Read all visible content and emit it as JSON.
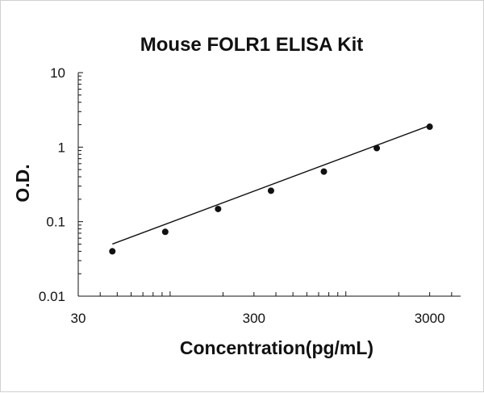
{
  "chart_data": {
    "type": "scatter",
    "title": "Mouse FOLR1 ELISA Kit",
    "xlabel": "Concentration(pg/mL)",
    "ylabel": "O.D.",
    "x_scale": "log",
    "y_scale": "log",
    "xlim": [
      30,
      4500
    ],
    "ylim": [
      0.01,
      10
    ],
    "x_ticks": [
      {
        "value": 30,
        "label": "30"
      },
      {
        "value": 300,
        "label": "300"
      },
      {
        "value": 3000,
        "label": "3000"
      }
    ],
    "y_ticks": [
      {
        "value": 0.01,
        "label": "0.01"
      },
      {
        "value": 0.1,
        "label": "0.1"
      },
      {
        "value": 1,
        "label": "1"
      },
      {
        "value": 10,
        "label": "10"
      }
    ],
    "grid": false,
    "legend": "none",
    "series": [
      {
        "points": [
          {
            "x": 46.9,
            "y": 0.04
          },
          {
            "x": 93.8,
            "y": 0.073
          },
          {
            "x": 187.5,
            "y": 0.148
          },
          {
            "x": 375,
            "y": 0.26
          },
          {
            "x": 750,
            "y": 0.47
          },
          {
            "x": 1500,
            "y": 0.97
          },
          {
            "x": 3000,
            "y": 1.88
          }
        ],
        "fit_line": [
          {
            "x": 46.9,
            "y": 0.05
          },
          {
            "x": 3000,
            "y": 1.95
          }
        ]
      }
    ],
    "colors": {
      "marker": "#111111",
      "line": "#111111",
      "axis": "#111111"
    }
  }
}
